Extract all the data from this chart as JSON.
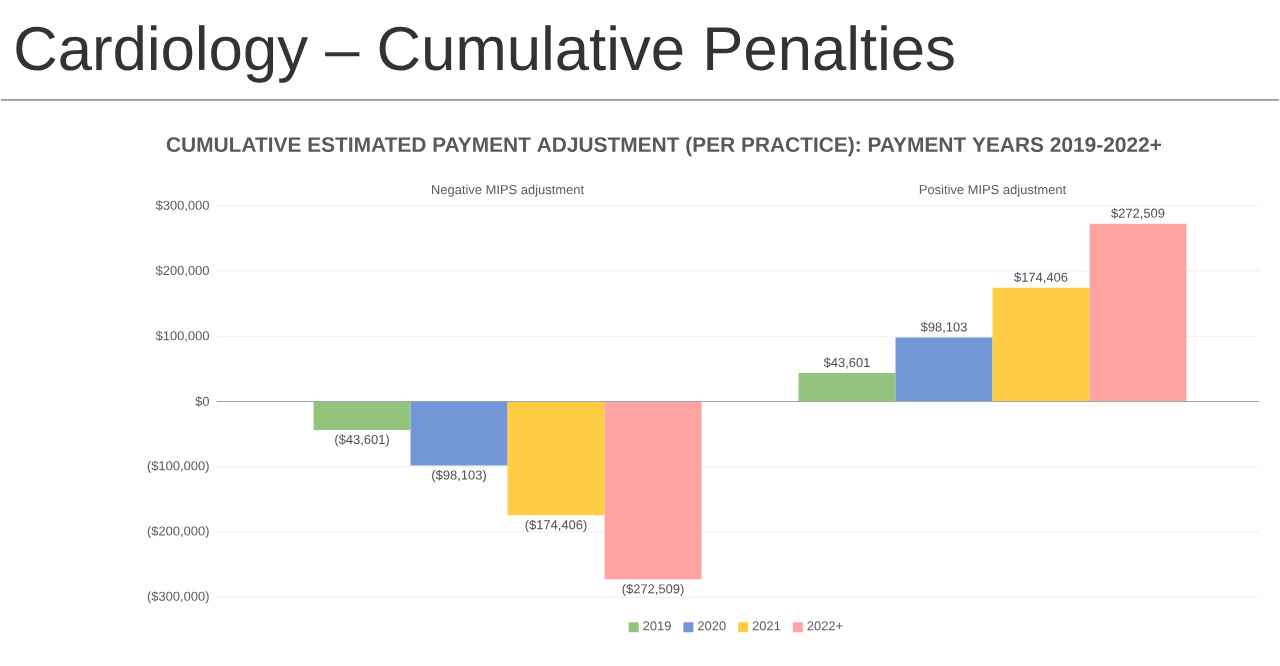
{
  "chart_data": {
    "type": "bar",
    "title": "Cardiology – Cumulative Penalties",
    "subtitle": "CUMULATIVE ESTIMATED PAYMENT ADJUSTMENT (PER PRACTICE): PAYMENT YEARS 2019-2022+",
    "categories": [
      "Negative MIPS adjustment",
      "Positive MIPS adjustment"
    ],
    "series": [
      {
        "name": "2019",
        "color": "#93c47d",
        "values": [
          -43601,
          43601
        ],
        "value_labels": [
          "($43,601)",
          "$43,601"
        ]
      },
      {
        "name": "2020",
        "color": "#7396d6",
        "values": [
          -98103,
          98103
        ],
        "value_labels": [
          "($98,103)",
          "$98,103"
        ]
      },
      {
        "name": "2021",
        "color": "#ffcd44",
        "values": [
          -174406,
          174406
        ],
        "value_labels": [
          "($174,406)",
          "$174,406"
        ]
      },
      {
        "name": "2022+",
        "color": "#ffa3a3",
        "values": [
          -272509,
          272509
        ],
        "value_labels": [
          "($272,509)",
          "$272,509"
        ]
      }
    ],
    "ylim": [
      -300000,
      300000
    ],
    "yticks": [
      {
        "value": -300000,
        "label": "($300,000)"
      },
      {
        "value": -200000,
        "label": "($200,000)"
      },
      {
        "value": -100000,
        "label": "($100,000)"
      },
      {
        "value": 0,
        "label": "$0"
      },
      {
        "value": 100000,
        "label": "$100,000"
      },
      {
        "value": 200000,
        "label": "$200,000"
      },
      {
        "value": 300000,
        "label": "$300,000"
      }
    ],
    "grid": "y",
    "legend": "bottom"
  }
}
